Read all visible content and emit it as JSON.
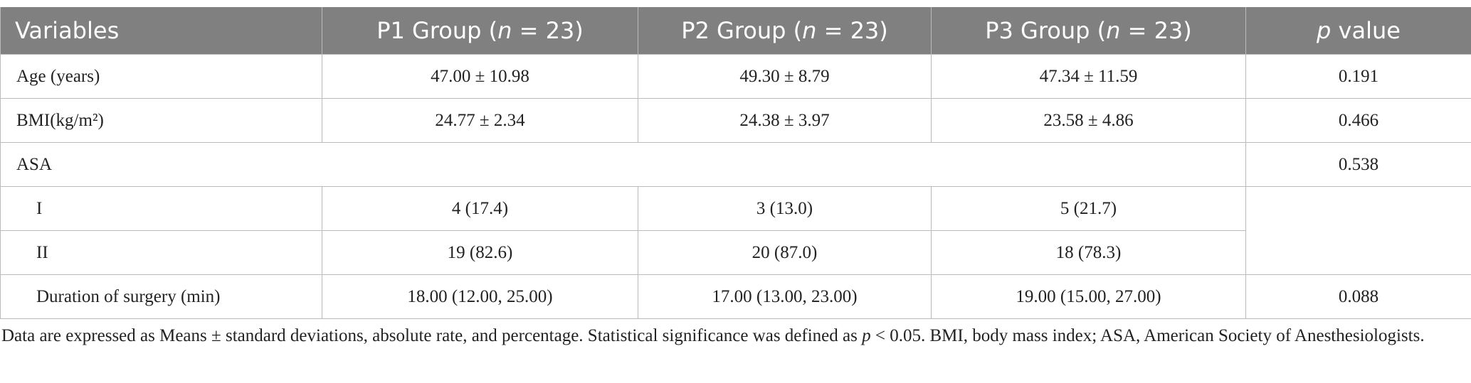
{
  "table": {
    "header": [
      [
        "Variables"
      ],
      [
        "P1 Group (",
        "n",
        " = 23)"
      ],
      [
        "P2 Group (",
        "n",
        " = 23)"
      ],
      [
        "P3 Group (",
        "n",
        " = 23)"
      ],
      [
        "p",
        " value"
      ]
    ],
    "rows": [
      [
        "Age (years)",
        "47.00 ± 10.98",
        "49.30 ± 8.79",
        "47.34 ± 11.59",
        "0.191"
      ],
      [
        "BMI(kg/m²)",
        "24.77 ± 2.34",
        "24.38 ± 3.97",
        "23.58 ± 4.86",
        "0.466"
      ],
      [
        "ASA",
        "0.538"
      ],
      [
        "I",
        "4 (17.4)",
        "3 (13.0)",
        "5 (21.7)"
      ],
      [
        "II",
        "19 (82.6)",
        "20 (87.0)",
        "18 (78.3)"
      ],
      [
        "Duration of surgery (min)",
        "18.00 (12.00, 25.00)",
        "17.00 (13.00, 23.00)",
        "19.00 (15.00, 27.00)",
        "0.088"
      ]
    ],
    "note": [
      "Data are expressed as Means ± standard deviations, absolute rate, and percentage. Statistical significance was defined as ",
      "p",
      " < 0.05. BMI, body mass index; ASA, American Society of Anesthesiologists."
    ]
  }
}
